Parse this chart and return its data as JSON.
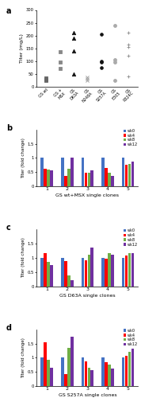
{
  "panel_a": {
    "categories": [
      "GS wt",
      "GS +\nMSX",
      "GS\nD63A",
      "GS\nN248A",
      "GS\nS257A",
      "GS\nE305",
      "GS\nR324C"
    ],
    "data": [
      [
        28,
        32,
        25
      ],
      [
        70,
        95,
        135
      ],
      [
        50,
        140,
        190,
        210
      ],
      [
        25,
        30,
        35
      ],
      [
        75,
        95,
        100,
        205
      ],
      [
        25,
        95,
        105,
        240
      ],
      [
        40,
        120,
        155,
        165,
        210
      ]
    ],
    "markers": [
      "s",
      "s",
      "^",
      "x",
      "o",
      "o",
      "+"
    ],
    "marker_sizes": [
      6,
      8,
      10,
      9,
      7,
      8,
      10
    ],
    "colors": [
      "#666666",
      "#888888",
      "#111111",
      "#999999",
      "#111111",
      "#aaaaaa",
      "#888888"
    ],
    "ylabel": "Titer (mg/L)",
    "ylim": [
      0,
      300
    ],
    "yticks": [
      0,
      50,
      100,
      150,
      200,
      250,
      300
    ]
  },
  "panel_b": {
    "title": "GS wt+MSX single clones",
    "clones": [
      1,
      2,
      3,
      4,
      5
    ],
    "weeks": [
      "wk0",
      "wk4",
      "wk8",
      "wk12"
    ],
    "colors": [
      "#4472c4",
      "#ff0000",
      "#70ad47",
      "#7030a0"
    ],
    "data": [
      [
        1.0,
        1.0,
        1.0,
        1.0,
        1.0
      ],
      [
        0.62,
        0.38,
        0.47,
        0.65,
        0.75
      ],
      [
        0.6,
        0.62,
        0.47,
        0.47,
        0.78
      ],
      [
        0.57,
        1.0,
        0.57,
        0.38,
        0.88
      ]
    ],
    "ylabel": "Titer (fold change)",
    "ylim": [
      0,
      2.0
    ],
    "yticks": [
      0,
      0.5,
      1.0,
      1.5
    ]
  },
  "panel_c": {
    "title": "GS D63A single clones",
    "clones": [
      1,
      2,
      3,
      4,
      5
    ],
    "weeks": [
      "wk0",
      "wk4",
      "wk8",
      "wk12"
    ],
    "colors": [
      "#4472c4",
      "#ff0000",
      "#70ad47",
      "#7030a0"
    ],
    "data": [
      [
        1.0,
        1.0,
        1.0,
        1.0,
        1.0
      ],
      [
        1.18,
        0.88,
        0.92,
        0.97,
        1.07
      ],
      [
        0.85,
        0.38,
        1.12,
        1.18,
        1.18
      ],
      [
        0.75,
        0.22,
        1.35,
        1.12,
        1.18
      ]
    ],
    "ylabel": "Titer (fold change)",
    "ylim": [
      0,
      2.0
    ],
    "yticks": [
      0,
      0.5,
      1.0,
      1.5
    ]
  },
  "panel_d": {
    "title": "GS S257A single clones",
    "clones": [
      1,
      2,
      3,
      4,
      5
    ],
    "weeks": [
      "wk0",
      "wk4",
      "wk8",
      "wk12"
    ],
    "colors": [
      "#4472c4",
      "#ff0000",
      "#70ad47",
      "#7030a0"
    ],
    "data": [
      [
        1.0,
        1.0,
        1.0,
        1.0,
        1.0
      ],
      [
        1.55,
        0.42,
        0.88,
        0.85,
        1.08
      ],
      [
        0.92,
        1.35,
        0.65,
        0.75,
        1.22
      ],
      [
        0.65,
        1.75,
        0.55,
        0.62,
        1.32
      ]
    ],
    "ylabel": "Titer (fold change)",
    "ylim": [
      0,
      2.0
    ],
    "yticks": [
      0,
      0.5,
      1.0,
      1.5
    ]
  }
}
